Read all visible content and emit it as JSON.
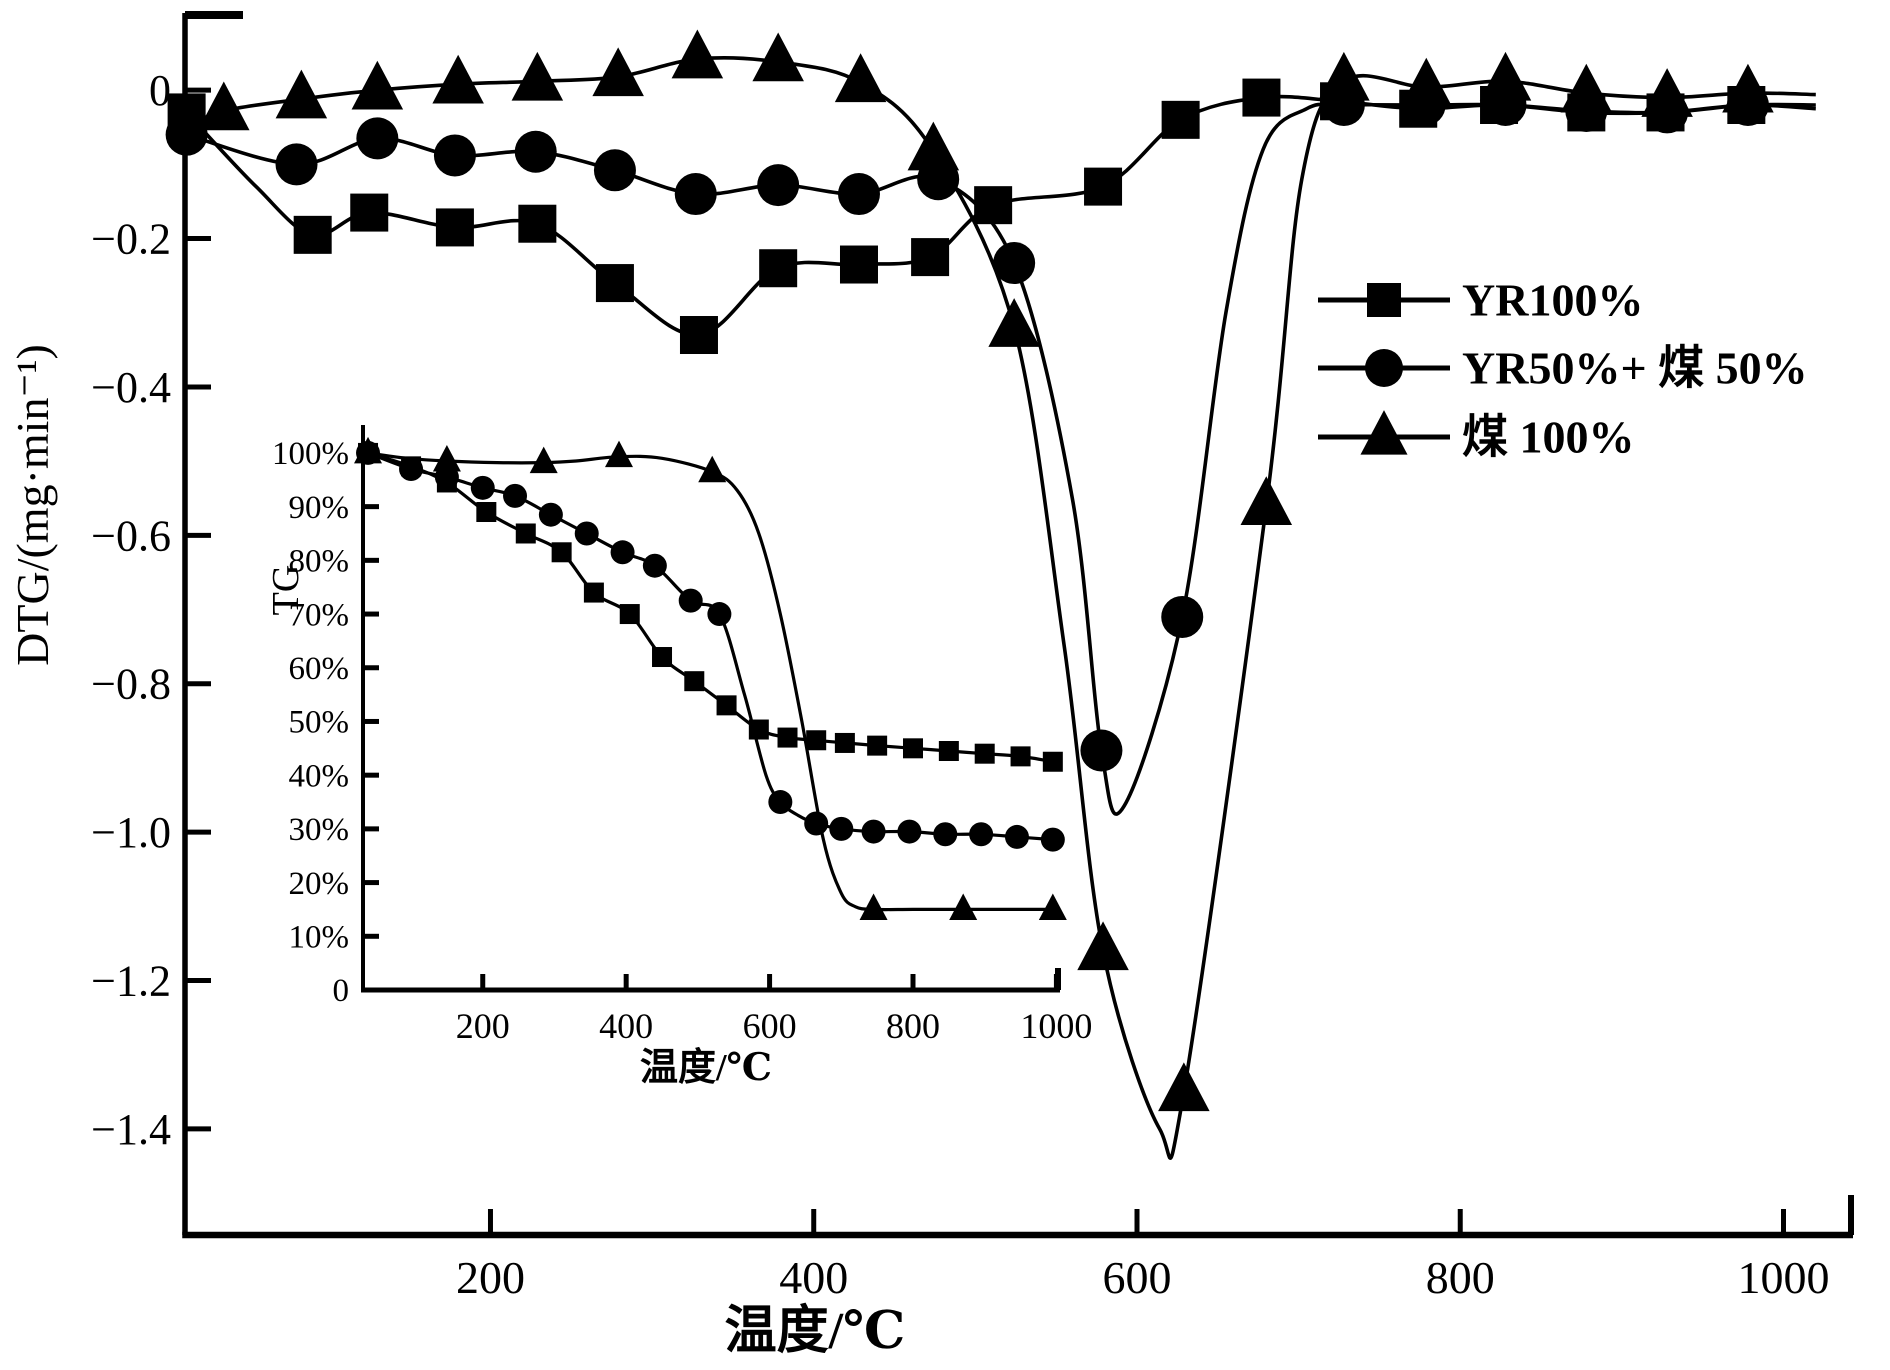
{
  "figure": {
    "background": "#ffffff",
    "line_color": "#000000"
  },
  "legend": {
    "entries": [
      {
        "id": "yr100",
        "marker": "square",
        "label": "YR100%"
      },
      {
        "id": "yr50-coal50",
        "marker": "circle",
        "label": "YR50%+ 煤 50%"
      },
      {
        "id": "coal100",
        "marker": "triangle",
        "label": "煤 100%"
      }
    ]
  },
  "chart_data": [
    {
      "type": "line",
      "role": "main",
      "title": "",
      "xlabel": "温度/℃",
      "ylabel": "DTG/(mg·min⁻¹)",
      "xlim": [
        11,
        1043
      ],
      "ylim": [
        -1.543,
        0.104
      ],
      "grid": false,
      "legend_position": "upper right",
      "xticks": {
        "values": [
          200,
          400,
          600,
          800,
          1000
        ],
        "labels": [
          "200",
          "400",
          "600",
          "800",
          "1000"
        ]
      },
      "yticks": {
        "values": [
          0,
          -0.2,
          -0.4,
          -0.6,
          -0.8,
          -1.0,
          -1.2,
          -1.4
        ],
        "labels": [
          "0",
          "−0.2",
          "−0.4",
          "−0.6",
          "−0.8",
          "−1.0",
          "−1.2",
          "−1.4"
        ]
      },
      "series": [
        {
          "id": "yr100",
          "name": "YR100%",
          "marker": "square",
          "x": [
            12,
            55,
            90,
            125,
            178,
            229,
            277,
            329,
            378,
            428,
            472,
            511,
            579,
            627,
            677,
            725,
            774,
            824,
            878,
            927,
            977,
            1020
          ],
          "y": [
            -0.03,
            -0.13,
            -0.195,
            -0.165,
            -0.185,
            -0.18,
            -0.26,
            -0.33,
            -0.24,
            -0.235,
            -0.225,
            -0.155,
            -0.13,
            -0.04,
            -0.01,
            -0.015,
            -0.025,
            -0.02,
            -0.03,
            -0.03,
            -0.02,
            -0.025
          ],
          "marker_idx": [
            0,
            2,
            3,
            4,
            5,
            6,
            7,
            8,
            9,
            10,
            11,
            12,
            13,
            14,
            15,
            16,
            17,
            18,
            19,
            20
          ]
        },
        {
          "id": "yr50-coal50",
          "name": "YR50%+ 煤 50%",
          "marker": "circle",
          "x": [
            12,
            80,
            130,
            178,
            228,
            277,
            327,
            378,
            428,
            477,
            524,
            560,
            578,
            592,
            628,
            655,
            678,
            705,
            728,
            778,
            828,
            878,
            928,
            978,
            1020
          ],
          "y": [
            -0.06,
            -0.1,
            -0.065,
            -0.088,
            -0.083,
            -0.108,
            -0.14,
            -0.128,
            -0.14,
            -0.12,
            -0.233,
            -0.55,
            -0.89,
            -0.965,
            -0.71,
            -0.3,
            -0.08,
            -0.025,
            -0.02,
            -0.02,
            -0.02,
            -0.028,
            -0.03,
            -0.02,
            -0.02
          ],
          "marker_idx": [
            0,
            1,
            2,
            3,
            4,
            5,
            6,
            7,
            8,
            9,
            10,
            12,
            14,
            18,
            19,
            20,
            21,
            22,
            23
          ]
        },
        {
          "id": "coal100",
          "name": "煤 100%",
          "marker": "triangle",
          "x": [
            12,
            35,
            83,
            130,
            180,
            229,
            279,
            328,
            378,
            429,
            474,
            524,
            555,
            579,
            614,
            629,
            680,
            702,
            728,
            779,
            828,
            878,
            928,
            978,
            1020
          ],
          "y": [
            -0.05,
            -0.028,
            -0.012,
            0.0,
            0.008,
            0.012,
            0.018,
            0.042,
            0.038,
            0.01,
            -0.082,
            -0.32,
            -0.75,
            -1.16,
            -1.4,
            -1.35,
            -0.56,
            -0.12,
            0.012,
            0.004,
            0.012,
            -0.004,
            -0.01,
            -0.004,
            -0.006
          ],
          "marker_idx": [
            1,
            2,
            3,
            4,
            5,
            6,
            7,
            8,
            9,
            10,
            11,
            13,
            15,
            16,
            18,
            19,
            20,
            21,
            22,
            23
          ]
        }
      ]
    },
    {
      "type": "line",
      "role": "inset",
      "title": "",
      "xlabel": "温度/℃",
      "ylabel": "TG",
      "xlim": [
        33,
        1005
      ],
      "ylim": [
        0,
        105.2
      ],
      "grid": false,
      "xticks": {
        "values": [
          200,
          400,
          600,
          800,
          1000
        ],
        "labels": [
          "200",
          "400",
          "600",
          "800",
          "1000"
        ]
      },
      "yticks": {
        "values": [
          0,
          10,
          20,
          30,
          40,
          50,
          60,
          70,
          80,
          90,
          100
        ],
        "labels": [
          "0",
          "10%",
          "20%",
          "30%",
          "40%",
          "50%",
          "60%",
          "70%",
          "80%",
          "90%",
          "100%"
        ]
      },
      "series": [
        {
          "id": "yr100",
          "name": "YR100%",
          "marker": "square",
          "x": [
            40,
            100,
            150,
            205,
            260,
            310,
            355,
            405,
            450,
            495,
            540,
            585,
            625,
            665,
            705,
            750,
            800,
            850,
            900,
            950,
            995
          ],
          "y": [
            100,
            97.5,
            94.5,
            89,
            85,
            81.5,
            74,
            70,
            62,
            57.5,
            53,
            48.5,
            47,
            46.5,
            46,
            45.5,
            45,
            44.5,
            44,
            43.5,
            42.5
          ],
          "marker_idx": [
            0,
            1,
            2,
            3,
            4,
            5,
            6,
            7,
            8,
            9,
            10,
            11,
            12,
            13,
            14,
            15,
            16,
            17,
            18,
            19,
            20
          ]
        },
        {
          "id": "yr50-coal50",
          "name": "YR50%+ 煤 50%",
          "marker": "circle",
          "x": [
            40,
            100,
            150,
            200,
            245,
            295,
            345,
            395,
            440,
            490,
            530,
            565,
            595,
            615,
            640,
            665,
            700,
            745,
            795,
            845,
            895,
            945,
            995
          ],
          "y": [
            100,
            97,
            95.5,
            93.5,
            92,
            88.5,
            85,
            81.5,
            79,
            72.5,
            70,
            55,
            40,
            35,
            32.5,
            31,
            30,
            29.5,
            29.5,
            29,
            29,
            28.5,
            28
          ],
          "marker_idx": [
            0,
            1,
            2,
            3,
            4,
            5,
            6,
            7,
            8,
            9,
            10,
            13,
            15,
            16,
            17,
            18,
            19,
            20,
            21,
            22
          ]
        },
        {
          "id": "coal100",
          "name": "煤 100%",
          "marker": "triangle",
          "x": [
            40,
            95,
            150,
            220,
            285,
            330,
            390,
            450,
            520,
            555,
            585,
            615,
            645,
            675,
            700,
            720,
            745,
            800,
            870,
            935,
            995
          ],
          "y": [
            100,
            99,
            98.5,
            98.2,
            98.2,
            98.5,
            99.3,
            99,
            96.5,
            93,
            85,
            70,
            50,
            28,
            18,
            15.5,
            15,
            15,
            15,
            15,
            15
          ],
          "marker_idx": [
            0,
            2,
            4,
            6,
            8,
            16,
            18,
            20
          ]
        }
      ]
    }
  ]
}
